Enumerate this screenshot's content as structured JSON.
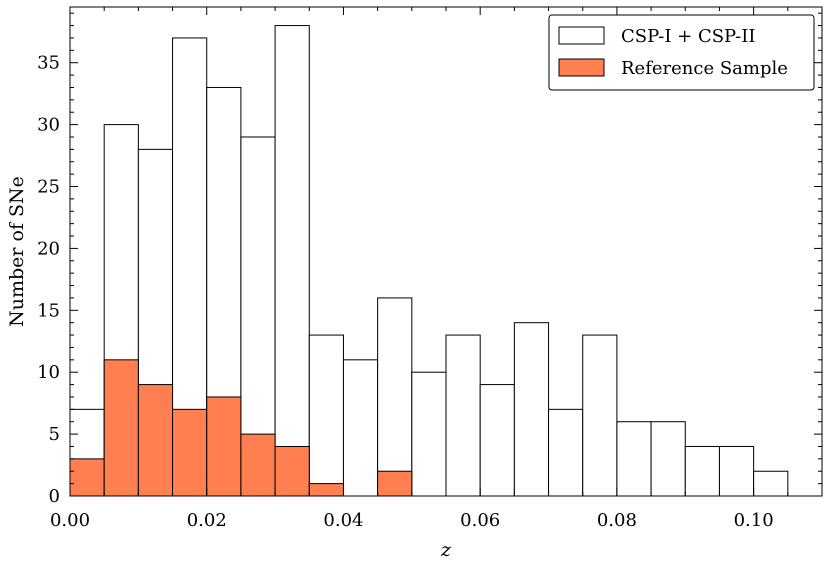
{
  "chart_data": {
    "type": "bar",
    "subtype": "overlaid-histogram",
    "title": "",
    "xlabel": "z",
    "ylabel": "Number of SNe",
    "xlim": [
      0.0,
      0.11
    ],
    "ylim": [
      0,
      39.5
    ],
    "bin_width": 0.005,
    "bin_edges": [
      0.0,
      0.005,
      0.01,
      0.015,
      0.02,
      0.025,
      0.03,
      0.035,
      0.04,
      0.045,
      0.05,
      0.055,
      0.06,
      0.065,
      0.07,
      0.075,
      0.08,
      0.085,
      0.09,
      0.095,
      0.1,
      0.105
    ],
    "x_ticks": [
      0.0,
      0.02,
      0.04,
      0.06,
      0.08,
      0.1
    ],
    "x_tick_labels": [
      "0.00",
      "0.02",
      "0.04",
      "0.06",
      "0.08",
      "0.10"
    ],
    "y_ticks": [
      0,
      5,
      10,
      15,
      20,
      25,
      30,
      35
    ],
    "y_tick_labels": [
      "0",
      "5",
      "10",
      "15",
      "20",
      "25",
      "30",
      "35"
    ],
    "grid": false,
    "legend_position": "top-right",
    "series": [
      {
        "name": "CSP-I + CSP-II",
        "values": [
          7,
          30,
          28,
          37,
          33,
          29,
          38,
          13,
          11,
          16,
          10,
          13,
          9,
          14,
          7,
          13,
          6,
          6,
          4,
          4,
          2
        ],
        "fill": "#ffffff",
        "edge": "#000000"
      },
      {
        "name": "Reference Sample",
        "values": [
          3,
          11,
          9,
          7,
          8,
          5,
          4,
          1,
          0,
          2,
          0,
          0,
          0,
          0,
          0,
          0,
          0,
          0,
          0,
          0,
          0
        ],
        "fill": "#ff7f50",
        "edge": "#000000"
      }
    ]
  }
}
